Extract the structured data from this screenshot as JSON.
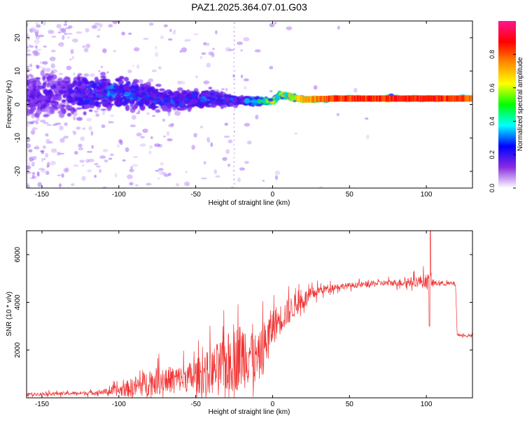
{
  "title": "PAZ1.2025.364.07.01.G03",
  "colors": {
    "snr_line": "#ef3333",
    "frame": "#000000",
    "background": "#ffffff"
  },
  "chart_data": [
    {
      "type": "heatmap",
      "name": "spectrogram",
      "xlabel": "Height of straight line (km)",
      "ylabel": "Frequency (Hz)",
      "xlim": [
        -160,
        130
      ],
      "ylim": [
        -25,
        25
      ],
      "xticks": [
        -150,
        -100,
        -50,
        0,
        50,
        100
      ],
      "yticks": [
        -20,
        -10,
        0,
        10,
        20
      ],
      "colorbar": {
        "label": "Normalized spectral amplitude",
        "range": [
          0,
          1
        ],
        "ticks": [
          "0.0",
          "0.2",
          "0.4",
          "0.6",
          "0.8"
        ],
        "colors": [
          "#ffffff",
          "#8a2be2",
          "#0000ff",
          "#00ffff",
          "#00ff00",
          "#ffff00",
          "#ff8c00",
          "#ff0000",
          "#ff1493"
        ]
      },
      "ridge": [
        {
          "x": -140,
          "f": 3,
          "spread": 9,
          "amp": 0.25
        },
        {
          "x": -120,
          "f": 3,
          "spread": 8,
          "amp": 0.35
        },
        {
          "x": -100,
          "f": 4,
          "spread": 6,
          "amp": 0.4
        },
        {
          "x": -80,
          "f": 2,
          "spread": 5,
          "amp": 0.35
        },
        {
          "x": -60,
          "f": 1,
          "spread": 4,
          "amp": 0.35
        },
        {
          "x": -40,
          "f": 2,
          "spread": 3,
          "amp": 0.4
        },
        {
          "x": -20,
          "f": 1,
          "spread": 1.5,
          "amp": 0.35
        },
        {
          "x": 0,
          "f": 1,
          "spread": 0.8,
          "amp": 0.7
        },
        {
          "x": 5,
          "f": 3,
          "spread": 1,
          "amp": 0.7
        },
        {
          "x": 20,
          "f": 1.5,
          "spread": 0.8,
          "amp": 0.85
        },
        {
          "x": 40,
          "f": 1.8,
          "spread": 0.7,
          "amp": 0.92
        },
        {
          "x": 80,
          "f": 1.8,
          "spread": 0.8,
          "amp": 0.95
        },
        {
          "x": 100,
          "f": 1.8,
          "spread": 0.8,
          "amp": 0.95
        },
        {
          "x": 130,
          "f": 1.8,
          "spread": 0.7,
          "amp": 0.9
        }
      ]
    },
    {
      "type": "line",
      "name": "snr",
      "xlabel": "Height of straight line (km)",
      "ylabel": "SNR (10 * v/v)",
      "xlim": [
        -160,
        130
      ],
      "ylim": [
        0,
        7000
      ],
      "xticks": [
        -150,
        -100,
        -50,
        0,
        50,
        100
      ],
      "yticks": [
        2000,
        4000,
        6000
      ],
      "series": [
        {
          "name": "SNR",
          "x": [
            -160,
            -140,
            -120,
            -110,
            -100,
            -90,
            -80,
            -70,
            -60,
            -50,
            -40,
            -30,
            -20,
            -15,
            -10,
            -5,
            0,
            5,
            10,
            15,
            20,
            30,
            40,
            50,
            60,
            70,
            80,
            90,
            95,
            100,
            102,
            105,
            110,
            115,
            119,
            120,
            125,
            130
          ],
          "y": [
            150,
            180,
            200,
            250,
            300,
            450,
            650,
            750,
            800,
            900,
            1100,
            1400,
            1800,
            2000,
            1500,
            2200,
            3000,
            3300,
            3600,
            3900,
            4100,
            4500,
            4650,
            4700,
            4750,
            4800,
            4820,
            4850,
            4880,
            4900,
            4800,
            4800,
            4800,
            4780,
            4780,
            2650,
            2600,
            2600
          ],
          "noise": [
            80,
            90,
            100,
            150,
            300,
            550,
            700,
            700,
            700,
            900,
            1200,
            1600,
            1800,
            1900,
            1200,
            1400,
            1000,
            800,
            700,
            600,
            500,
            250,
            180,
            150,
            150,
            150,
            180,
            250,
            300,
            400,
            500,
            150,
            120,
            120,
            120,
            80,
            60,
            60
          ]
        }
      ]
    }
  ]
}
